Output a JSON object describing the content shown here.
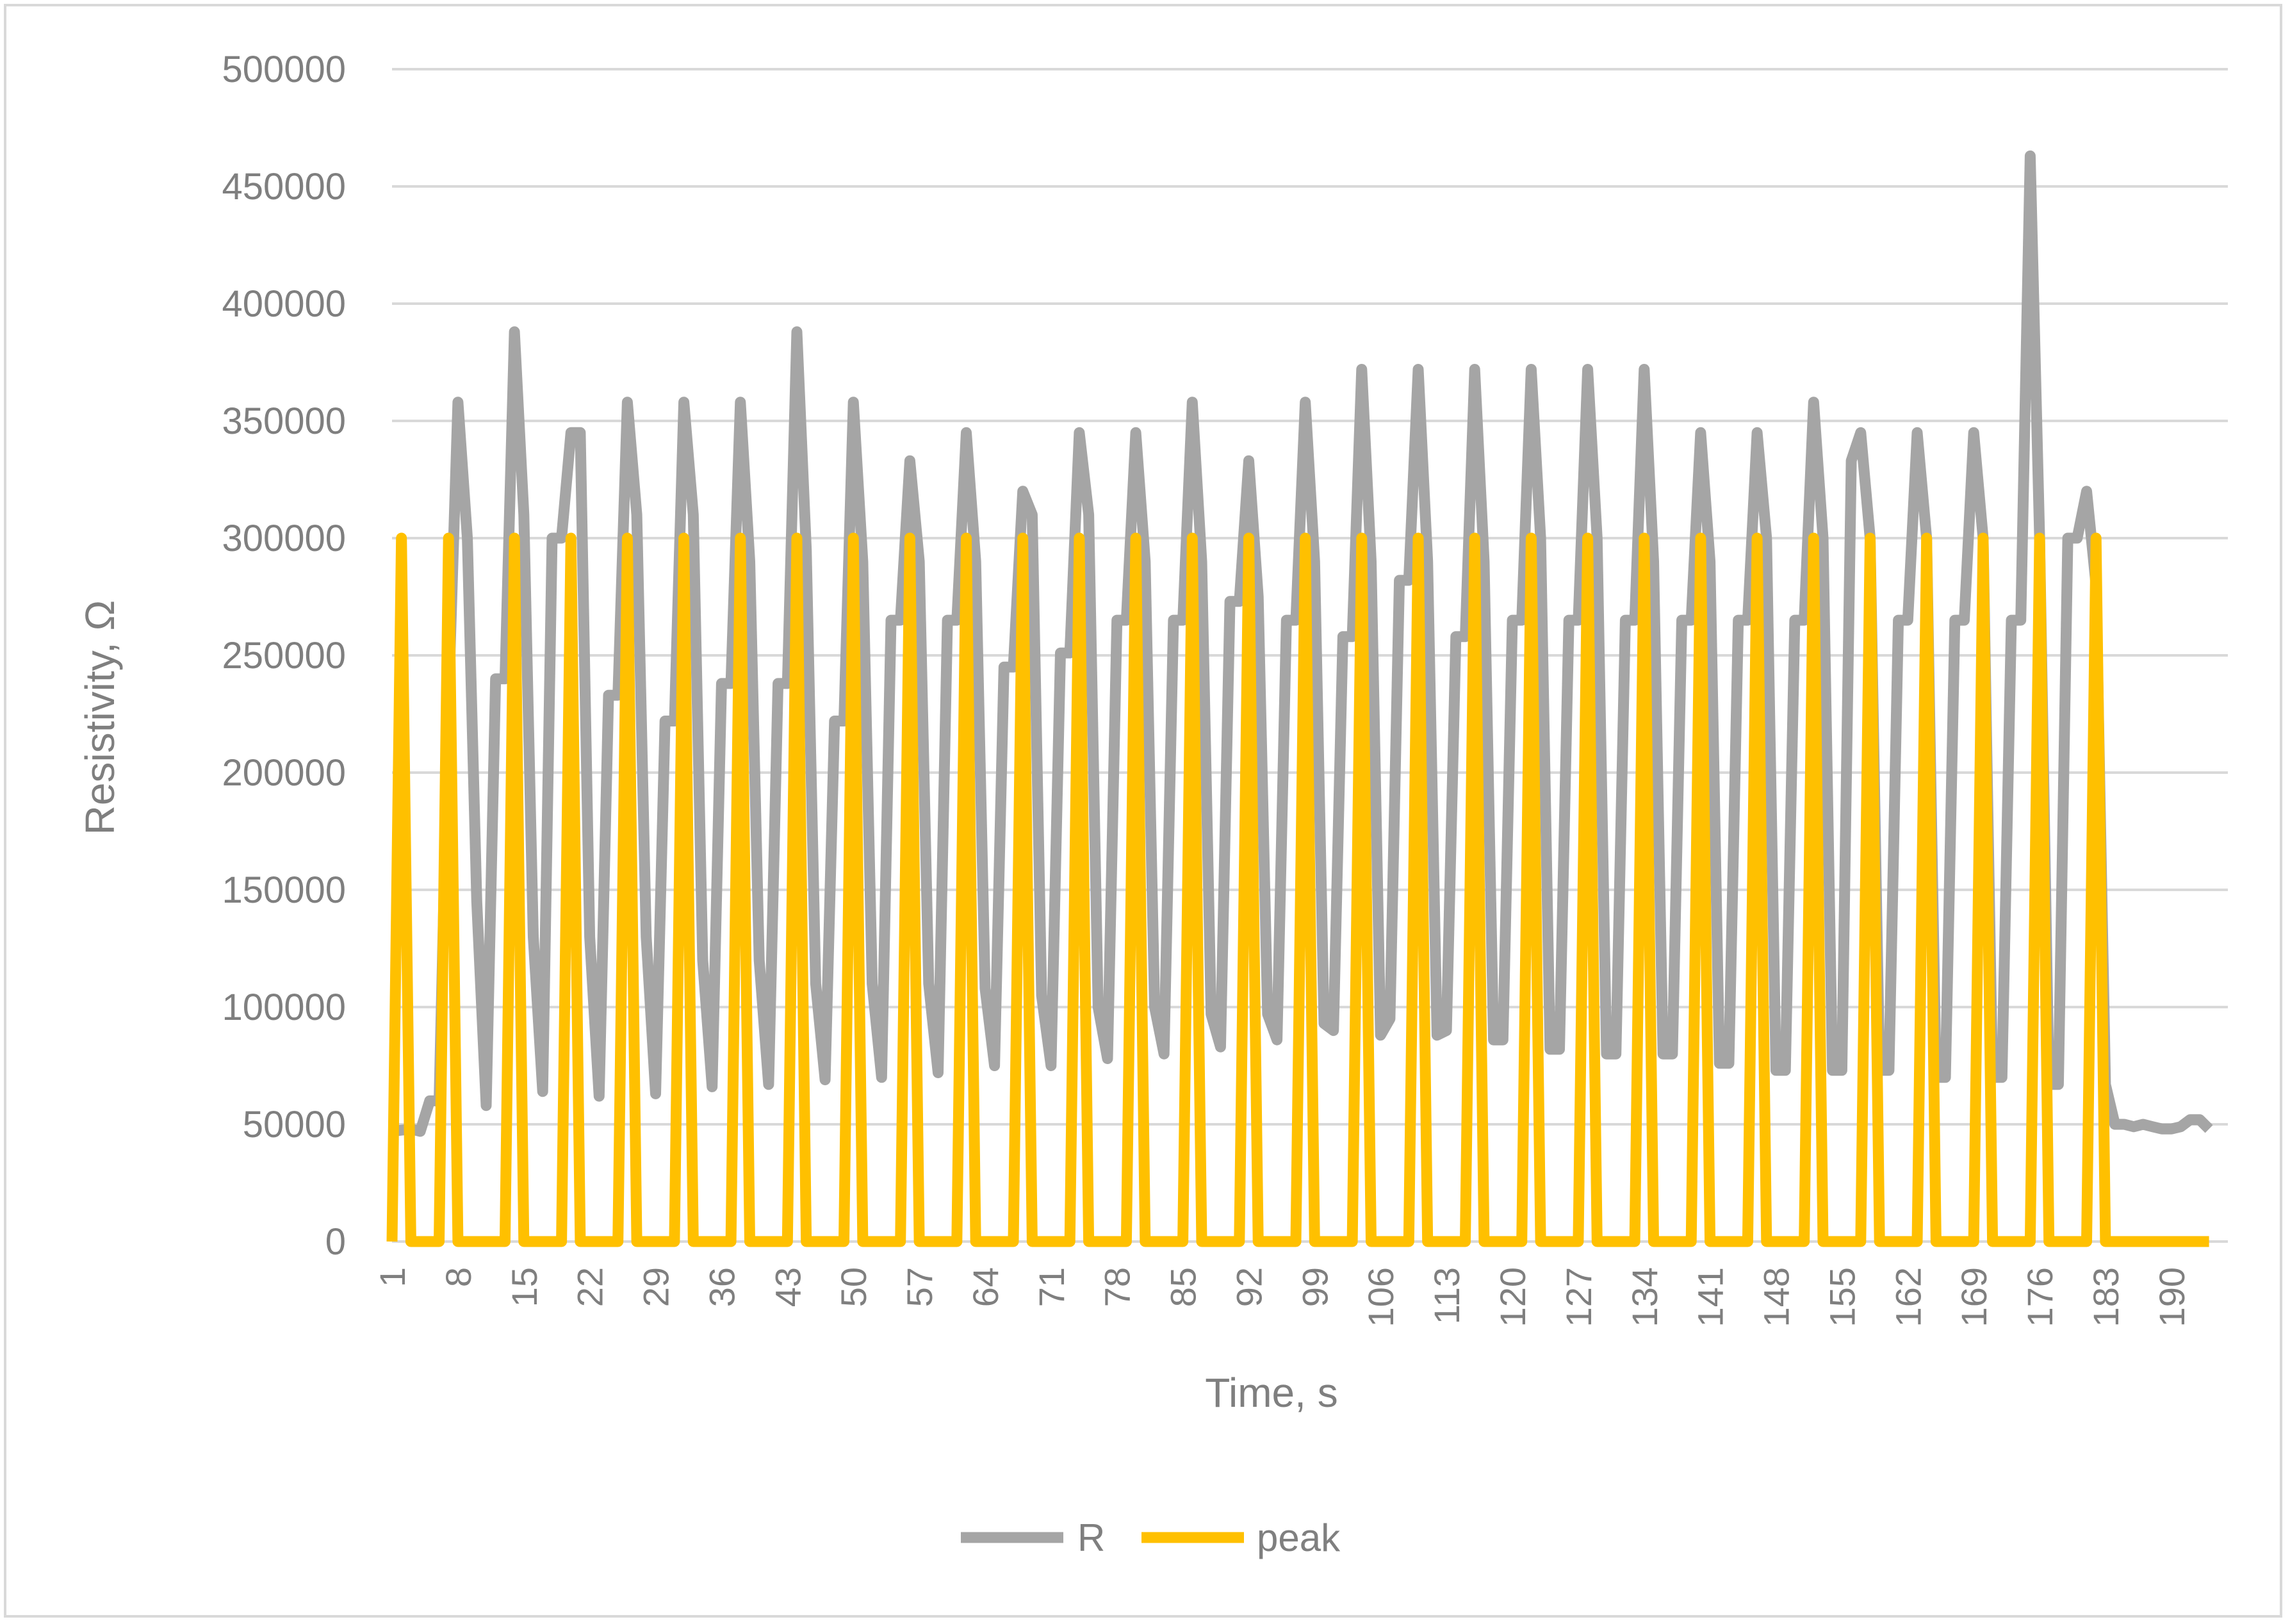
{
  "chart_data": {
    "type": "line",
    "xlabel": "Time, s",
    "ylabel": "Resistivity, Ω",
    "ylim": [
      0,
      500000
    ],
    "yticks": [
      0,
      50000,
      100000,
      150000,
      200000,
      250000,
      300000,
      350000,
      400000,
      450000,
      500000
    ],
    "xlim": [
      1,
      196
    ],
    "xticks": [
      1,
      8,
      15,
      22,
      29,
      36,
      43,
      50,
      57,
      64,
      71,
      78,
      85,
      92,
      99,
      106,
      113,
      120,
      127,
      134,
      141,
      148,
      155,
      162,
      169,
      176,
      183,
      190
    ],
    "grid": true,
    "legend": "bottom",
    "colors": {
      "R": "#a5a5a5",
      "peak": "#ffc000",
      "grid": "#d9d9d9",
      "text": "#7f7f7f"
    },
    "series": [
      {
        "name": "R",
        "points": [
          [
            1,
            47000
          ],
          [
            3,
            48000
          ],
          [
            4,
            47000
          ],
          [
            5,
            60000
          ],
          [
            6,
            60000
          ],
          [
            7,
            230000
          ],
          [
            8,
            358000
          ],
          [
            9,
            300000
          ],
          [
            10,
            145000
          ],
          [
            11,
            58000
          ],
          [
            12,
            240000
          ],
          [
            13,
            240000
          ],
          [
            14,
            388000
          ],
          [
            15,
            310000
          ],
          [
            16,
            130000
          ],
          [
            17,
            64000
          ],
          [
            18,
            300000
          ],
          [
            19,
            300000
          ],
          [
            20,
            345000
          ],
          [
            21,
            345000
          ],
          [
            22,
            130000
          ],
          [
            23,
            62000
          ],
          [
            24,
            233000
          ],
          [
            25,
            233000
          ],
          [
            26,
            358000
          ],
          [
            27,
            310000
          ],
          [
            28,
            130000
          ],
          [
            29,
            63000
          ],
          [
            30,
            222000
          ],
          [
            31,
            222000
          ],
          [
            32,
            358000
          ],
          [
            33,
            310000
          ],
          [
            34,
            120000
          ],
          [
            35,
            66000
          ],
          [
            36,
            238000
          ],
          [
            37,
            238000
          ],
          [
            38,
            358000
          ],
          [
            39,
            290000
          ],
          [
            40,
            120000
          ],
          [
            41,
            67000
          ],
          [
            42,
            238000
          ],
          [
            43,
            238000
          ],
          [
            44,
            388000
          ],
          [
            45,
            295000
          ],
          [
            46,
            110000
          ],
          [
            47,
            69000
          ],
          [
            48,
            222000
          ],
          [
            49,
            222000
          ],
          [
            50,
            358000
          ],
          [
            51,
            290000
          ],
          [
            52,
            110000
          ],
          [
            53,
            70000
          ],
          [
            54,
            265000
          ],
          [
            55,
            265000
          ],
          [
            56,
            333000
          ],
          [
            57,
            290000
          ],
          [
            58,
            110000
          ],
          [
            59,
            72000
          ],
          [
            60,
            265000
          ],
          [
            61,
            265000
          ],
          [
            62,
            345000
          ],
          [
            63,
            290000
          ],
          [
            64,
            108000
          ],
          [
            65,
            75000
          ],
          [
            66,
            245000
          ],
          [
            67,
            245000
          ],
          [
            68,
            320000
          ],
          [
            69,
            310000
          ],
          [
            70,
            105000
          ],
          [
            71,
            75000
          ],
          [
            72,
            251000
          ],
          [
            73,
            251000
          ],
          [
            74,
            345000
          ],
          [
            75,
            310000
          ],
          [
            76,
            100000
          ],
          [
            77,
            78000
          ],
          [
            78,
            265000
          ],
          [
            79,
            265000
          ],
          [
            80,
            345000
          ],
          [
            81,
            290000
          ],
          [
            82,
            100000
          ],
          [
            83,
            80000
          ],
          [
            84,
            265000
          ],
          [
            85,
            265000
          ],
          [
            86,
            358000
          ],
          [
            87,
            290000
          ],
          [
            88,
            97000
          ],
          [
            89,
            83000
          ],
          [
            90,
            273000
          ],
          [
            91,
            273000
          ],
          [
            92,
            333000
          ],
          [
            93,
            275000
          ],
          [
            94,
            97000
          ],
          [
            95,
            86000
          ],
          [
            96,
            265000
          ],
          [
            97,
            265000
          ],
          [
            98,
            358000
          ],
          [
            99,
            290000
          ],
          [
            100,
            93000
          ],
          [
            101,
            90000
          ],
          [
            102,
            258000
          ],
          [
            103,
            258000
          ],
          [
            104,
            372000
          ],
          [
            105,
            290000
          ],
          [
            106,
            88000
          ],
          [
            107,
            95000
          ],
          [
            108,
            282000
          ],
          [
            109,
            282000
          ],
          [
            110,
            372000
          ],
          [
            111,
            290000
          ],
          [
            112,
            88000
          ],
          [
            113,
            90000
          ],
          [
            114,
            258000
          ],
          [
            115,
            258000
          ],
          [
            116,
            372000
          ],
          [
            117,
            290000
          ],
          [
            118,
            86000
          ],
          [
            119,
            86000
          ],
          [
            120,
            265000
          ],
          [
            121,
            265000
          ],
          [
            122,
            372000
          ],
          [
            123,
            300000
          ],
          [
            124,
            82000
          ],
          [
            125,
            82000
          ],
          [
            126,
            265000
          ],
          [
            127,
            265000
          ],
          [
            128,
            372000
          ],
          [
            129,
            300000
          ],
          [
            130,
            80000
          ],
          [
            131,
            80000
          ],
          [
            132,
            265000
          ],
          [
            133,
            265000
          ],
          [
            134,
            372000
          ],
          [
            135,
            290000
          ],
          [
            136,
            80000
          ],
          [
            137,
            80000
          ],
          [
            138,
            265000
          ],
          [
            139,
            265000
          ],
          [
            140,
            345000
          ],
          [
            141,
            290000
          ],
          [
            142,
            76000
          ],
          [
            143,
            76000
          ],
          [
            144,
            265000
          ],
          [
            145,
            265000
          ],
          [
            146,
            345000
          ],
          [
            147,
            300000
          ],
          [
            148,
            73000
          ],
          [
            149,
            73000
          ],
          [
            150,
            265000
          ],
          [
            151,
            265000
          ],
          [
            152,
            358000
          ],
          [
            153,
            300000
          ],
          [
            154,
            73000
          ],
          [
            155,
            73000
          ],
          [
            156,
            333000
          ],
          [
            157,
            345000
          ],
          [
            158,
            300000
          ],
          [
            159,
            73000
          ],
          [
            160,
            73000
          ],
          [
            161,
            265000
          ],
          [
            162,
            265000
          ],
          [
            163,
            345000
          ],
          [
            164,
            300000
          ],
          [
            165,
            70000
          ],
          [
            166,
            70000
          ],
          [
            167,
            265000
          ],
          [
            168,
            265000
          ],
          [
            169,
            345000
          ],
          [
            170,
            300000
          ],
          [
            171,
            70000
          ],
          [
            172,
            70000
          ],
          [
            173,
            265000
          ],
          [
            174,
            265000
          ],
          [
            175,
            463000
          ],
          [
            176,
            300000
          ],
          [
            177,
            67000
          ],
          [
            178,
            67000
          ],
          [
            179,
            300000
          ],
          [
            180,
            300000
          ],
          [
            181,
            320000
          ],
          [
            182,
            280000
          ],
          [
            183,
            67000
          ],
          [
            184,
            50000
          ],
          [
            185,
            50000
          ],
          [
            186,
            49000
          ],
          [
            187,
            50000
          ],
          [
            188,
            49000
          ],
          [
            189,
            48000
          ],
          [
            190,
            48000
          ],
          [
            191,
            49000
          ],
          [
            192,
            52000
          ],
          [
            193,
            52000
          ],
          [
            194,
            48000
          ]
        ]
      },
      {
        "name": "peak",
        "points": [
          [
            1,
            0
          ],
          [
            2,
            300000
          ],
          [
            3,
            0
          ],
          [
            6,
            0
          ],
          [
            7,
            300000
          ],
          [
            8,
            0
          ],
          [
            13,
            0
          ],
          [
            14,
            300000
          ],
          [
            15,
            0
          ],
          [
            19,
            0
          ],
          [
            20,
            300000
          ],
          [
            21,
            0
          ],
          [
            25,
            0
          ],
          [
            26,
            300000
          ],
          [
            27,
            0
          ],
          [
            31,
            0
          ],
          [
            32,
            300000
          ],
          [
            33,
            0
          ],
          [
            37,
            0
          ],
          [
            38,
            300000
          ],
          [
            39,
            0
          ],
          [
            43,
            0
          ],
          [
            44,
            300000
          ],
          [
            45,
            0
          ],
          [
            49,
            0
          ],
          [
            50,
            300000
          ],
          [
            51,
            0
          ],
          [
            55,
            0
          ],
          [
            56,
            300000
          ],
          [
            57,
            0
          ],
          [
            61,
            0
          ],
          [
            62,
            300000
          ],
          [
            63,
            0
          ],
          [
            67,
            0
          ],
          [
            68,
            300000
          ],
          [
            69,
            0
          ],
          [
            73,
            0
          ],
          [
            74,
            300000
          ],
          [
            75,
            0
          ],
          [
            79,
            0
          ],
          [
            80,
            300000
          ],
          [
            81,
            0
          ],
          [
            85,
            0
          ],
          [
            86,
            300000
          ],
          [
            87,
            0
          ],
          [
            91,
            0
          ],
          [
            92,
            300000
          ],
          [
            93,
            0
          ],
          [
            97,
            0
          ],
          [
            98,
            300000
          ],
          [
            99,
            0
          ],
          [
            103,
            0
          ],
          [
            104,
            300000
          ],
          [
            105,
            0
          ],
          [
            109,
            0
          ],
          [
            110,
            300000
          ],
          [
            111,
            0
          ],
          [
            115,
            0
          ],
          [
            116,
            300000
          ],
          [
            117,
            0
          ],
          [
            121,
            0
          ],
          [
            122,
            300000
          ],
          [
            123,
            0
          ],
          [
            127,
            0
          ],
          [
            128,
            300000
          ],
          [
            129,
            0
          ],
          [
            133,
            0
          ],
          [
            134,
            300000
          ],
          [
            135,
            0
          ],
          [
            139,
            0
          ],
          [
            140,
            300000
          ],
          [
            141,
            0
          ],
          [
            145,
            0
          ],
          [
            146,
            300000
          ],
          [
            147,
            0
          ],
          [
            151,
            0
          ],
          [
            152,
            300000
          ],
          [
            153,
            0
          ],
          [
            157,
            0
          ],
          [
            158,
            300000
          ],
          [
            159,
            0
          ],
          [
            163,
            0
          ],
          [
            164,
            300000
          ],
          [
            165,
            0
          ],
          [
            169,
            0
          ],
          [
            170,
            300000
          ],
          [
            171,
            0
          ],
          [
            175,
            0
          ],
          [
            176,
            300000
          ],
          [
            177,
            0
          ],
          [
            181,
            0
          ],
          [
            182,
            300000
          ],
          [
            183,
            0
          ],
          [
            194,
            0
          ]
        ]
      }
    ]
  }
}
